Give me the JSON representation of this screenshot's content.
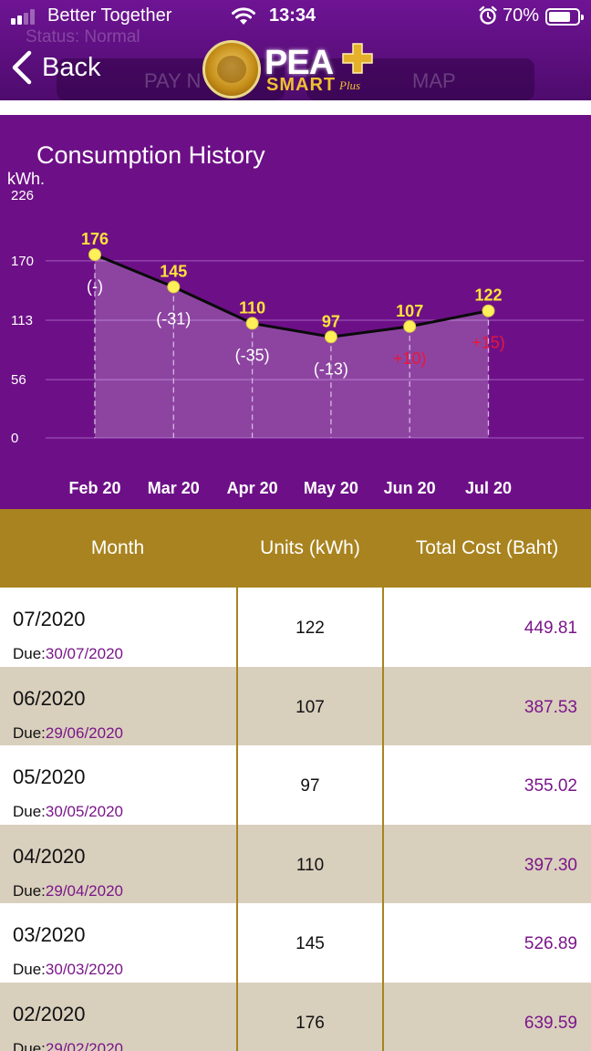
{
  "status_bar": {
    "carrier": "Better Together",
    "time": "13:34",
    "battery": "70%",
    "icons": [
      "signal-icon",
      "wifi-icon",
      "alarm-icon",
      "battery-icon"
    ]
  },
  "header": {
    "back_label": "Back",
    "logo_text": "PEA",
    "logo_subtext": "SMART",
    "logo_plus": "Plus",
    "background_status": "Status:  Normal",
    "background_pay": "PAY N",
    "background_map": "MAP"
  },
  "chart_data": {
    "type": "area",
    "title": "Consumption History",
    "ylabel": "kWh.",
    "categories": [
      "Feb 20",
      "Mar 20",
      "Apr 20",
      "May 20",
      "Jun 20",
      "Jul 20"
    ],
    "values": [
      176,
      145,
      110,
      97,
      107,
      122
    ],
    "diffs": [
      "(-)",
      "(-31)",
      "(-35)",
      "(-13)",
      "+10)",
      "+15)"
    ],
    "yticks": [
      "226",
      "170",
      "113",
      "56",
      "0"
    ],
    "ylim": [
      0,
      226
    ],
    "colors": {
      "background": "#6d1087",
      "line": "#0a0a0a",
      "point": "#fff05a",
      "value_label": "#ffe33a",
      "decrease_label": "#ffffff",
      "increase_label": "#e8173b"
    }
  },
  "table": {
    "headers": {
      "month": "Month",
      "units": "Units (kWh)",
      "cost": "Total Cost (Baht)"
    },
    "due_label": "Due:",
    "rows": [
      {
        "month": "07/2020",
        "due": "30/07/2020",
        "units": "122",
        "cost": "449.81"
      },
      {
        "month": "06/2020",
        "due": "29/06/2020",
        "units": "107",
        "cost": "387.53"
      },
      {
        "month": "05/2020",
        "due": "30/05/2020",
        "units": "97",
        "cost": "355.02"
      },
      {
        "month": "04/2020",
        "due": "29/04/2020",
        "units": "110",
        "cost": "397.30"
      },
      {
        "month": "03/2020",
        "due": "30/03/2020",
        "units": "145",
        "cost": "526.89"
      },
      {
        "month": "02/2020",
        "due": "29/02/2020",
        "units": "176",
        "cost": "639.59"
      }
    ]
  }
}
